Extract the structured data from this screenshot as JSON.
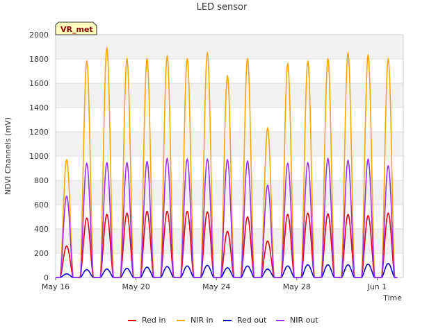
{
  "chart_data": {
    "type": "line",
    "title": "LED sensor",
    "xlabel": "Time",
    "ylabel": "NDVI Channels (mV)",
    "badge": "VR_met",
    "ylim": [
      0,
      2000
    ],
    "yticks": [
      0,
      200,
      400,
      600,
      800,
      1000,
      1200,
      1400,
      1600,
      1800,
      2000
    ],
    "xlim": [
      0,
      17.3
    ],
    "xticks": [
      {
        "value": 0,
        "label": "May 16"
      },
      {
        "value": 4,
        "label": "May 20"
      },
      {
        "value": 8,
        "label": "May 24"
      },
      {
        "value": 12,
        "label": "May 28"
      },
      {
        "value": 16,
        "label": "Jun 1"
      }
    ],
    "x_units": "days since May 16",
    "day_peaks": {
      "days": [
        0,
        1,
        2,
        3,
        4,
        5,
        6,
        7,
        8,
        9,
        10,
        11,
        12,
        13,
        14,
        15,
        16
      ],
      "series": [
        {
          "name": "Red in",
          "color": "#e8000b",
          "values": [
            260,
            490,
            520,
            530,
            545,
            545,
            545,
            540,
            380,
            500,
            300,
            520,
            530,
            525,
            520,
            510,
            530
          ]
        },
        {
          "name": "NIR in",
          "color": "#ffa500",
          "values": [
            970,
            1780,
            1890,
            1800,
            1800,
            1820,
            1800,
            1850,
            1660,
            1800,
            1230,
            1760,
            1780,
            1800,
            1850,
            1830,
            1800
          ]
        },
        {
          "name": "Red out",
          "color": "#0000cd",
          "values": [
            30,
            65,
            70,
            75,
            85,
            90,
            95,
            100,
            80,
            95,
            70,
            95,
            105,
            105,
            105,
            110,
            115
          ]
        },
        {
          "name": "NIR out",
          "color": "#9b30ff",
          "values": [
            670,
            940,
            945,
            945,
            955,
            980,
            975,
            975,
            970,
            960,
            760,
            940,
            945,
            980,
            965,
            975,
            920
          ]
        }
      ]
    },
    "legend_position": "bottom-center",
    "grid": true
  }
}
